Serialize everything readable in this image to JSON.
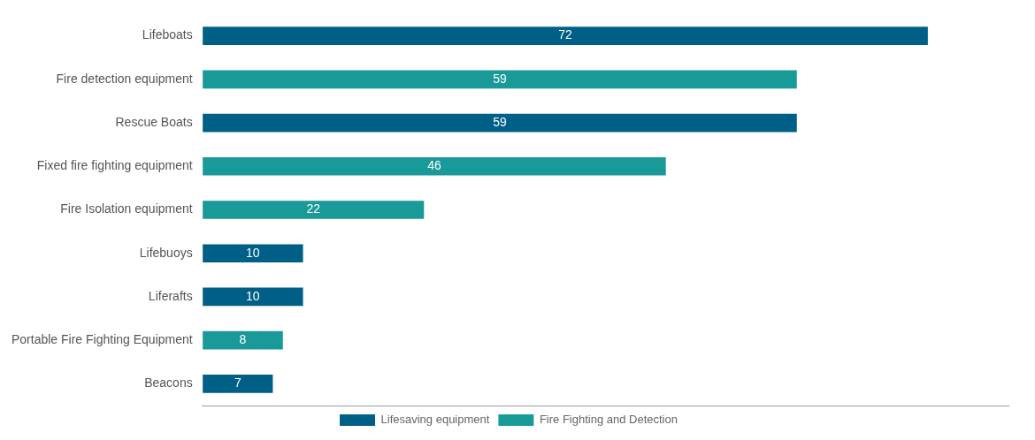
{
  "chart_data": {
    "type": "bar",
    "orientation": "horizontal",
    "stacked": true,
    "categories": [
      "Lifeboats",
      "Fire detection equipment",
      "Rescue Boats",
      "Fixed fire fighting equipment",
      "Fire Isolation equipment",
      "Lifebuoys",
      "Liferafts",
      "Portable Fire Fighting Equipment",
      "Beacons"
    ],
    "series": [
      {
        "name": "Lifesaving equipment",
        "color": "#005f87",
        "values": [
          72,
          null,
          59,
          null,
          null,
          10,
          10,
          null,
          7
        ]
      },
      {
        "name": "Fire Fighting and Detection",
        "color": "#1a9999",
        "values": [
          null,
          59,
          null,
          46,
          22,
          null,
          null,
          8,
          null
        ]
      }
    ],
    "xlim": [
      0,
      80
    ],
    "grid": false,
    "legend": "bottom",
    "data_labels": true,
    "tick_labels": "y"
  }
}
